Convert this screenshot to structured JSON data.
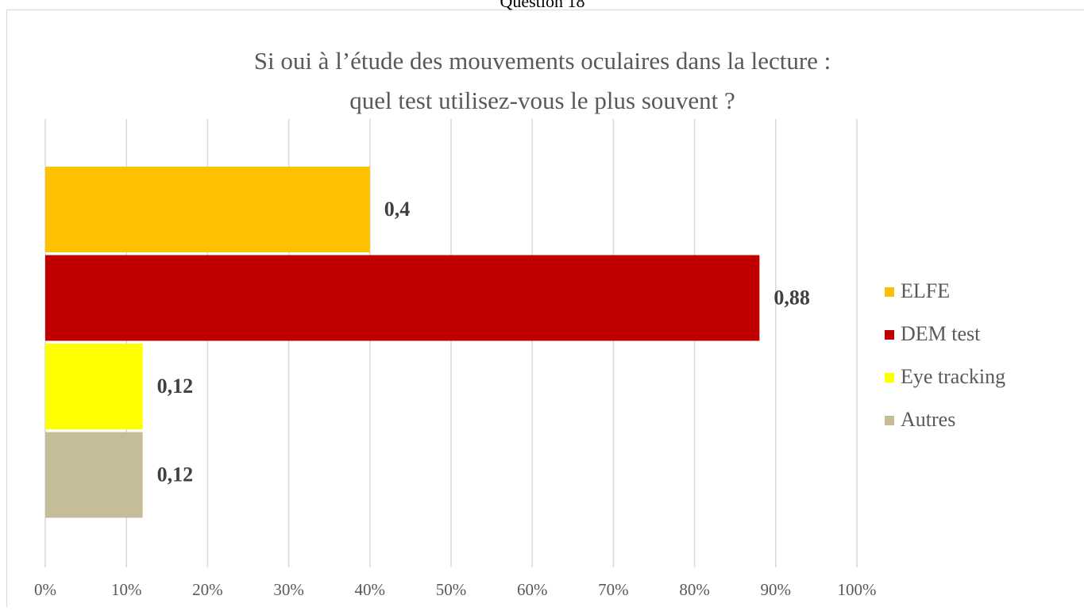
{
  "chart_data": {
    "type": "hbar",
    "heading": "Question 18",
    "title": [
      "Si oui à l’étude des mouvements oculaires dans la lecture :",
      "quel test utilisez-vous le plus souvent ?"
    ],
    "categories": [
      null
    ],
    "series": [
      {
        "name": "ELFE",
        "color": "#ffc000",
        "values": [
          0.4
        ],
        "value_labels": [
          "0,4"
        ]
      },
      {
        "name": "DEM test",
        "color": "#c00000",
        "values": [
          0.88
        ],
        "value_labels": [
          "0,88"
        ]
      },
      {
        "name": "Eye tracking",
        "color": "#ffff00",
        "values": [
          0.12
        ],
        "value_labels": [
          "0,12"
        ]
      },
      {
        "name": "Autres",
        "color": "#c4bd97",
        "values": [
          0.12
        ],
        "value_labels": [
          "0,12"
        ]
      }
    ],
    "xlim": [
      0,
      1
    ],
    "xticks": [
      {
        "value": 0,
        "label": "0%"
      },
      {
        "value": 0.1,
        "label": "10%"
      },
      {
        "value": 0.2,
        "label": "20%"
      },
      {
        "value": 0.3,
        "label": "30%"
      },
      {
        "value": 0.4,
        "label": "40%"
      },
      {
        "value": 0.5,
        "label": "50%"
      },
      {
        "value": 0.6,
        "label": "60%"
      },
      {
        "value": 0.7,
        "label": "70%"
      },
      {
        "value": 0.8,
        "label": "80%"
      },
      {
        "value": 0.9,
        "label": "90%"
      },
      {
        "value": 1,
        "label": "100%"
      }
    ],
    "grid": true,
    "legend": "right"
  }
}
